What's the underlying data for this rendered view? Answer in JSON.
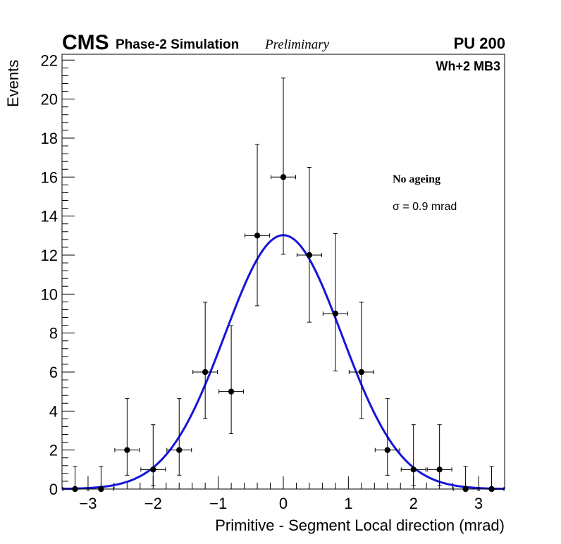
{
  "header": {
    "experiment": "CMS",
    "subtitle": "Phase-2 Simulation",
    "status": "Preliminary",
    "pileup": "PU 200"
  },
  "chart_data": {
    "type": "scatter",
    "title": "",
    "xlabel": "Primitive - Segment Local direction (mrad)",
    "ylabel": "Events",
    "xlim": [
      -3.4,
      3.4
    ],
    "ylim": [
      0,
      22.3
    ],
    "grid": false,
    "x_ticks": [
      -3,
      -2,
      -1,
      0,
      1,
      2,
      3
    ],
    "x_tick_labels": [
      "−3",
      "−2",
      "−1",
      "0",
      "1",
      "2",
      "3"
    ],
    "y_ticks": [
      0,
      2,
      4,
      6,
      8,
      10,
      12,
      14,
      16,
      18,
      20,
      22
    ],
    "y_tick_labels": [
      "0",
      "2",
      "4",
      "6",
      "8",
      "10",
      "12",
      "14",
      "16",
      "18",
      "20",
      "22"
    ],
    "chamber_label": "Wh+2 MB3",
    "annotations": [
      "No ageing",
      "σ = 0.9 mrad"
    ],
    "series": [
      {
        "name": "Simulation",
        "kind": "points-with-errors",
        "color": "#000000",
        "bin_half_width": 0.2,
        "x": [
          -3.2,
          -2.8,
          -2.4,
          -2.0,
          -1.6,
          -1.2,
          -0.8,
          -0.4,
          0.0,
          0.4,
          0.8,
          1.2,
          1.6,
          2.0,
          2.4,
          2.8,
          3.2
        ],
        "y": [
          0,
          0,
          2,
          1,
          2,
          6,
          5,
          13,
          16,
          12,
          9,
          6,
          2,
          1,
          1,
          0,
          0
        ],
        "err_lo": [
          0,
          0,
          1.29,
          0.83,
          1.29,
          2.38,
          2.16,
          3.6,
          3.96,
          3.44,
          2.94,
          2.38,
          1.29,
          0.83,
          0.83,
          0,
          0
        ],
        "err_hi": [
          1.15,
          1.15,
          2.64,
          2.3,
          2.64,
          3.58,
          3.38,
          4.67,
          5.08,
          4.5,
          4.1,
          3.58,
          2.64,
          2.3,
          2.3,
          1.15,
          1.15
        ]
      },
      {
        "name": "Gaussian fit",
        "kind": "function",
        "color": "#1515d9",
        "amplitude": 13.02,
        "mean": 0.0,
        "sigma": 0.9
      }
    ]
  }
}
